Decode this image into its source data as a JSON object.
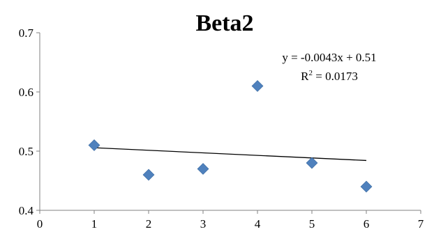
{
  "chart_data": {
    "type": "scatter",
    "title": "Beta2",
    "xlabel": "",
    "ylabel": "",
    "xlim": [
      0,
      7
    ],
    "ylim": [
      0.4,
      0.7
    ],
    "x_ticks": [
      "0",
      "1",
      "2",
      "3",
      "4",
      "5",
      "6",
      "7"
    ],
    "y_ticks": [
      "0.4",
      "0.5",
      "0.6",
      "0.7"
    ],
    "grid": false,
    "legend": "none",
    "points": [
      {
        "x": 1,
        "y": 0.51
      },
      {
        "x": 2,
        "y": 0.46
      },
      {
        "x": 3,
        "y": 0.47
      },
      {
        "x": 4,
        "y": 0.61
      },
      {
        "x": 5,
        "y": 0.48
      },
      {
        "x": 6,
        "y": 0.44
      }
    ],
    "trendline": {
      "slope": -0.0043,
      "intercept": 0.51,
      "x_range": [
        1,
        6
      ],
      "equation_label": "y = -0.0043x + 0.51",
      "r2_prefix": "R",
      "r2_exponent": "2",
      "r2_value": " = 0.0173"
    },
    "marker_color": "#4F81BD",
    "trendline_color": "#000000"
  }
}
